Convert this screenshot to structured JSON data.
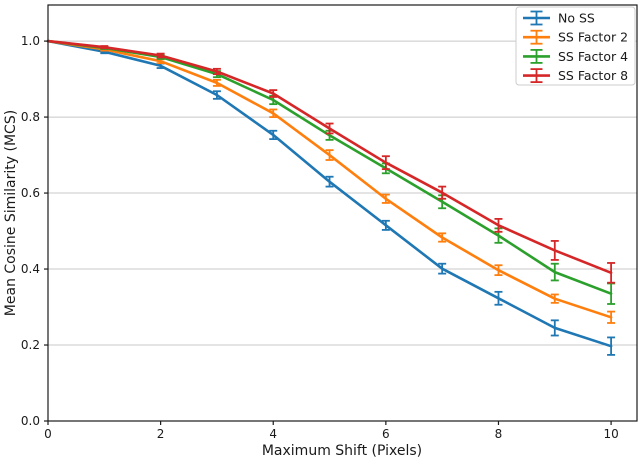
{
  "chart_data": {
    "type": "line",
    "title": "",
    "xlabel": "Maximum Shift (Pixels)",
    "ylabel": "Mean Cosine Similarity (MCS)",
    "x": [
      0,
      1,
      2,
      3,
      4,
      5,
      6,
      7,
      8,
      9,
      10
    ],
    "series": [
      {
        "name": "No SS",
        "color": "#1f77b4",
        "values": [
          1.0,
          0.972,
          0.935,
          0.858,
          0.753,
          0.63,
          0.515,
          0.401,
          0.323,
          0.245,
          0.197
        ],
        "errors": [
          0.0,
          0.004,
          0.006,
          0.01,
          0.011,
          0.013,
          0.012,
          0.013,
          0.017,
          0.02,
          0.023
        ]
      },
      {
        "name": "SS Factor 2",
        "color": "#ff7f0e",
        "values": [
          1.0,
          0.978,
          0.947,
          0.89,
          0.81,
          0.7,
          0.585,
          0.483,
          0.397,
          0.322,
          0.273
        ],
        "errors": [
          0.0,
          0.003,
          0.005,
          0.008,
          0.01,
          0.013,
          0.011,
          0.011,
          0.013,
          0.011,
          0.015
        ]
      },
      {
        "name": "SS Factor 4",
        "color": "#2ca02c",
        "values": [
          1.0,
          0.982,
          0.958,
          0.913,
          0.845,
          0.752,
          0.665,
          0.577,
          0.488,
          0.392,
          0.335
        ],
        "errors": [
          0.0,
          0.003,
          0.005,
          0.008,
          0.011,
          0.012,
          0.013,
          0.017,
          0.019,
          0.022,
          0.027
        ]
      },
      {
        "name": "SS Factor 8",
        "color": "#d62728",
        "values": [
          1.0,
          0.984,
          0.962,
          0.92,
          0.862,
          0.77,
          0.68,
          0.601,
          0.515,
          0.449,
          0.39
        ],
        "errors": [
          0.0,
          0.003,
          0.005,
          0.007,
          0.009,
          0.013,
          0.017,
          0.016,
          0.017,
          0.025,
          0.026
        ]
      }
    ],
    "xticks": [
      0,
      2,
      4,
      6,
      8,
      10
    ],
    "xtick_labels": [
      "0",
      "2",
      "4",
      "6",
      "8",
      "10"
    ],
    "yticks": [
      0.0,
      0.2,
      0.4,
      0.6,
      0.8,
      1.0
    ],
    "ytick_labels": [
      "0.0",
      "0.2",
      "0.4",
      "0.6",
      "0.8",
      "1.0"
    ],
    "xlim": [
      0,
      10.46
    ],
    "ylim": [
      0,
      1.095
    ],
    "grid": "horizontal",
    "error_bars": true,
    "legend": {
      "position": "upper right",
      "entries": [
        "No SS",
        "SS Factor 2",
        "SS Factor 4",
        "SS Factor 8"
      ]
    }
  },
  "style": {
    "grid_color": "#c8c8c8",
    "spine_color": "#1a1a1a",
    "legend_border_color": "#cccccc",
    "background": "#ffffff"
  }
}
